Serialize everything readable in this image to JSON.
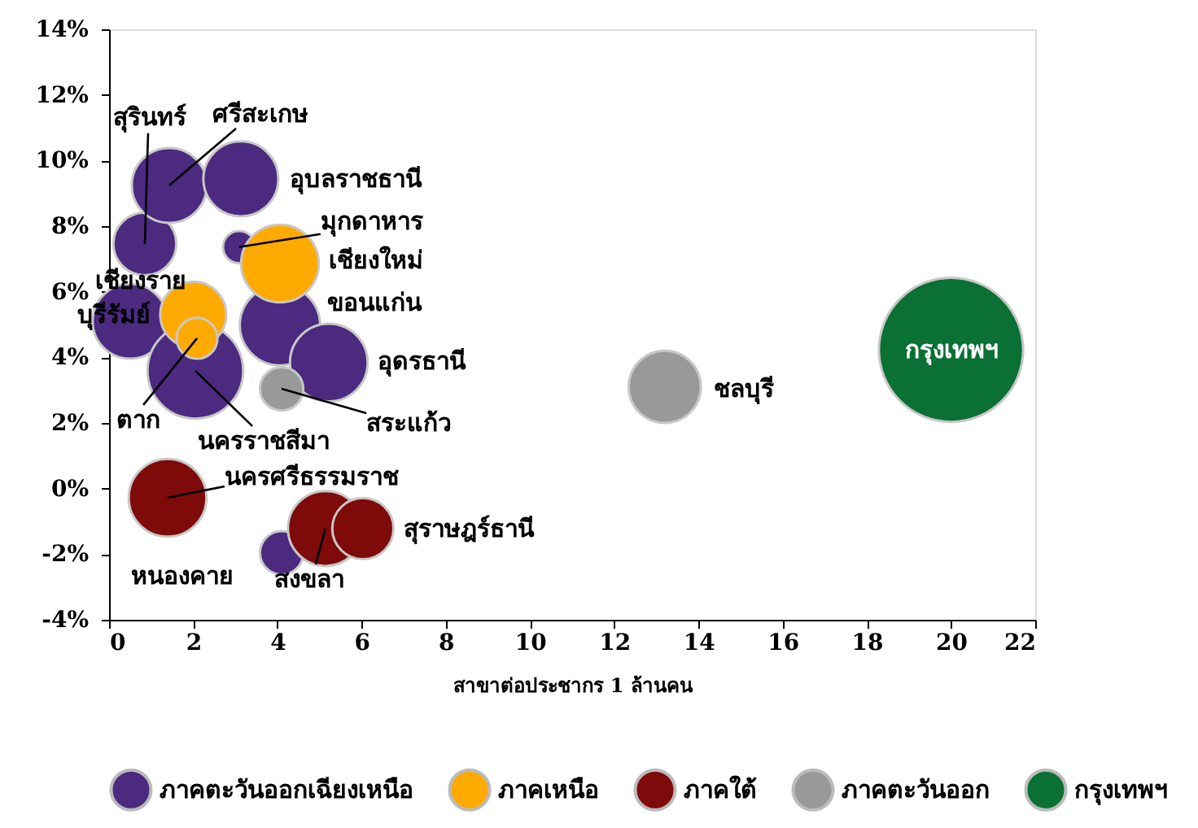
{
  "chart_data": {
    "type": "bubble",
    "xlabel": "สาขาต่อประชากร 1 ล้านคน",
    "xlim": [
      0,
      22
    ],
    "xticks": [
      0,
      2,
      4,
      6,
      8,
      10,
      12,
      14,
      16,
      18,
      20,
      22
    ],
    "ylim": [
      -4,
      14
    ],
    "yticks": [
      {
        "value": -4,
        "label": "-4%"
      },
      {
        "value": -2,
        "label": "-2%"
      },
      {
        "value": 0,
        "label": "0%"
      },
      {
        "value": 2,
        "label": "2%"
      },
      {
        "value": 4,
        "label": "4%"
      },
      {
        "value": 6,
        "label": "6%"
      },
      {
        "value": 8,
        "label": "8%"
      },
      {
        "value": 10,
        "label": "10%"
      },
      {
        "value": 12,
        "label": "12%"
      },
      {
        "value": 14,
        "label": "14%"
      }
    ],
    "grid": false,
    "legend": "bottom",
    "series": [
      {
        "name": "ภาคตะวันออกเฉียงเหนือ",
        "color": "#4b2a80",
        "x": [
          0.85,
          1.43,
          3.13,
          3.09,
          4.06,
          5.22,
          0.5,
          2.05,
          4.1
        ],
        "values": [
          7.46,
          9.24,
          9.44,
          7.36,
          4.98,
          3.84,
          5.1,
          3.59,
          -1.96
        ],
        "sizes": [
          0.19,
          0.27,
          0.27,
          0.05,
          0.31,
          0.29,
          0.27,
          0.44,
          0.09
        ]
      },
      {
        "name": "ภาคเหนือ",
        "color": "#ffaa00",
        "x": [
          4.06,
          2.0,
          2.09
        ],
        "values": [
          6.86,
          5.3,
          4.58
        ],
        "sizes": [
          0.29,
          0.21,
          0.08
        ]
      },
      {
        "name": "ภาคใต้",
        "color": "#7f0a0a",
        "x": [
          1.39,
          5.14,
          6.03
        ],
        "values": [
          -0.28,
          -1.22,
          -1.22
        ],
        "sizes": [
          0.29,
          0.27,
          0.18
        ]
      },
      {
        "name": "ภาคตะวันออก",
        "color": "#999999",
        "x": [
          4.1,
          13.2
        ],
        "values": [
          3.04,
          3.1
        ],
        "sizes": [
          0.09,
          0.25
        ]
      },
      {
        "name": "กรุงเทพฯ",
        "color": "#0a7033",
        "x": [
          20.0
        ],
        "values": [
          4.23
        ],
        "sizes": [
          1
        ]
      }
    ],
    "annotations": [
      {
        "text": "สุรินทร์",
        "x": 0.85,
        "y": 7.46
      },
      {
        "text": "ศรีสะเกษ",
        "x": 1.43,
        "y": 9.24
      },
      {
        "text": "อุบลราชธานี",
        "x": 3.13,
        "y": 9.44
      },
      {
        "text": "มุกดาหาร",
        "x": 3.09,
        "y": 7.36
      },
      {
        "text": "เชียงใหม่",
        "x": 4.06,
        "y": 6.86
      },
      {
        "text": "ขอนแก่น",
        "x": 4.06,
        "y": 4.98
      },
      {
        "text": "อุดรธานี",
        "x": 5.22,
        "y": 3.84
      },
      {
        "text": "สระแก้ว",
        "x": 4.1,
        "y": 3.04
      },
      {
        "text": "เชียงราย",
        "x": 2.0,
        "y": 5.3
      },
      {
        "text": "บุรีรัมย์",
        "x": 0.5,
        "y": 5.1
      },
      {
        "text": "ตาก",
        "x": 2.09,
        "y": 4.58
      },
      {
        "text": "นครราชสีมา",
        "x": 2.05,
        "y": 3.59
      },
      {
        "text": "นครศรีธรรมราช",
        "x": 1.39,
        "y": -0.28
      },
      {
        "text": "สงขลา",
        "x": 5.14,
        "y": -1.22
      },
      {
        "text": "สุราษฎร์ธานี",
        "x": 6.03,
        "y": -1.22
      },
      {
        "text": "หนองคาย",
        "x": 4.1,
        "y": -1.96
      },
      {
        "text": "ชลบุรี",
        "x": 13.2,
        "y": 3.1
      },
      {
        "text": "กรุงเทพฯ",
        "x": 20.0,
        "y": 4.23
      }
    ]
  }
}
